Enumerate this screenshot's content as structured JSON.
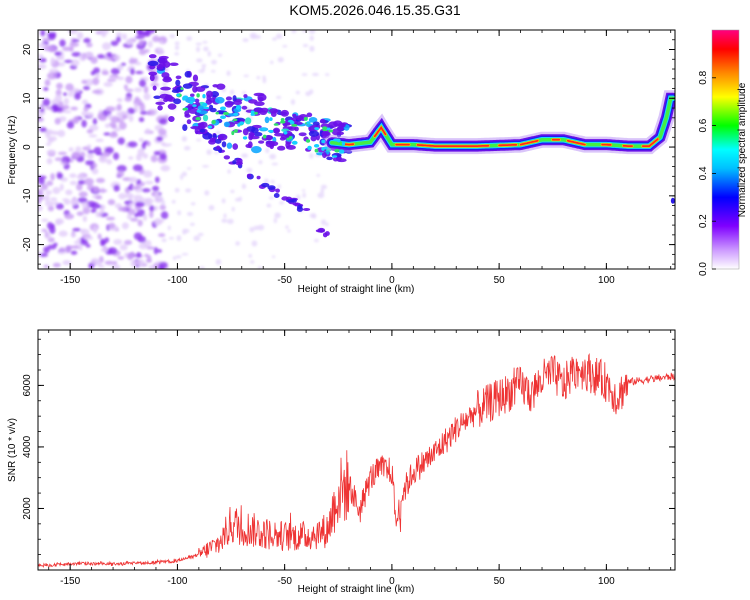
{
  "title": "KOM5.2026.046.15.35.G31",
  "chart_data": [
    {
      "type": "heatmap",
      "name": "spectrogram",
      "title": "KOM5.2026.046.15.35.G31",
      "xlabel": "Height of straight line (km)",
      "ylabel": "Frequency (Hz)",
      "xlim": [
        -165,
        132
      ],
      "ylim": [
        -25,
        24
      ],
      "xticks": [
        -150,
        -100,
        -50,
        0,
        50,
        100
      ],
      "yticks": [
        -20,
        -10,
        0,
        10,
        20
      ],
      "colorbar": {
        "label": "Normalized spectral amplitude",
        "range": [
          0.0,
          1.0
        ],
        "ticks": [
          "0.0",
          "0.2",
          "0.4",
          "0.6",
          "0.8"
        ],
        "colors": [
          "#ffffff",
          "#cc99ff",
          "#7f00ff",
          "#0000ff",
          "#00ffff",
          "#00ff00",
          "#ffff00",
          "#ff8800",
          "#ff0000",
          "#ff0080"
        ]
      },
      "ridge": {
        "x": [
          -110,
          -100,
          -90,
          -80,
          -70,
          -60,
          -50,
          -40,
          -30,
          -20,
          -10,
          -5,
          0,
          10,
          20,
          40,
          60,
          70,
          80,
          90,
          100,
          110,
          120,
          125,
          128,
          130
        ],
        "y": [
          14,
          10,
          8,
          6,
          5,
          4,
          3,
          3,
          1,
          0.5,
          1,
          4,
          0.5,
          0.5,
          0.2,
          0.2,
          0.5,
          1.5,
          1.5,
          0.5,
          0.5,
          0.2,
          0.2,
          2,
          6,
          10
        ]
      },
      "branch": {
        "x": [
          -90,
          -80,
          -70,
          -60,
          -50,
          -40,
          -35,
          -30
        ],
        "y": [
          4,
          0,
          -4,
          -8,
          -10,
          -13,
          -16,
          -18
        ]
      }
    },
    {
      "type": "line",
      "name": "snr",
      "xlabel": "Height of straight line (km)",
      "ylabel": "SNR (10 * v/v)",
      "xlim": [
        -165,
        132
      ],
      "ylim": [
        0,
        7800
      ],
      "xticks": [
        -150,
        -100,
        -50,
        0,
        50,
        100
      ],
      "yticks": [
        2000,
        4000,
        6000
      ],
      "color": "#ee3333",
      "series": [
        {
          "name": "SNR",
          "x": [
            -165,
            -150,
            -130,
            -110,
            -100,
            -90,
            -80,
            -75,
            -70,
            -60,
            -50,
            -40,
            -30,
            -25,
            -20,
            -15,
            -10,
            -5,
            0,
            2,
            5,
            10,
            20,
            30,
            40,
            50,
            60,
            65,
            70,
            75,
            80,
            85,
            90,
            100,
            105,
            110,
            120,
            132
          ],
          "y": [
            150,
            200,
            200,
            250,
            300,
            500,
            900,
            1500,
            1400,
            1200,
            1100,
            1100,
            1300,
            2500,
            2800,
            1900,
            3000,
            3300,
            3200,
            1500,
            2500,
            3200,
            3800,
            4600,
            5200,
            5600,
            6000,
            5700,
            6200,
            6400,
            6000,
            6500,
            6500,
            6100,
            5600,
            6100,
            6200,
            6300
          ]
        }
      ]
    }
  ]
}
